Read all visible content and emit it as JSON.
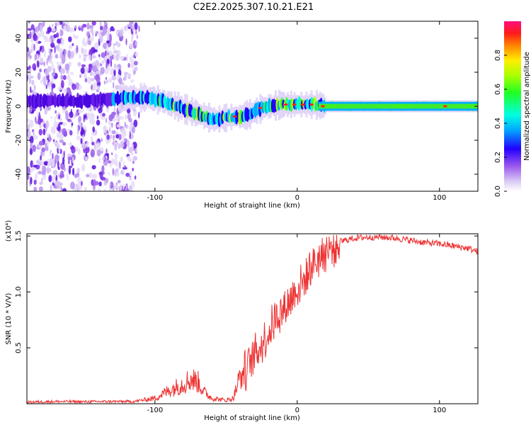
{
  "title": "C2E2.2025.307.10.21.E21",
  "chart_data": [
    {
      "type": "heatmap",
      "name": "spectrogram",
      "xlabel": "Height of straight line (km)",
      "ylabel": "Frequency (Hz)",
      "xlim": [
        -190,
        127
      ],
      "ylim": [
        -50,
        50
      ],
      "xticks": [
        -100,
        0,
        100
      ],
      "yticks": [
        -40,
        -20,
        0,
        20,
        40
      ],
      "xtick_labels": [
        "-100",
        "0",
        "100"
      ],
      "ytick_labels": [
        "-40",
        "-20",
        "0",
        "20",
        "40"
      ],
      "colorbar": {
        "label": "Normalized spectral amplitude",
        "range": [
          0,
          1
        ],
        "ticks": [
          0.0,
          0.2,
          0.4,
          0.6,
          0.8
        ],
        "tick_labels": [
          "0.0",
          "0.2",
          "0.4",
          "0.6",
          "0.8"
        ]
      },
      "ridge": {
        "x": [
          -190,
          -150,
          -120,
          -105,
          -95,
          -85,
          -75,
          -65,
          -58,
          -52,
          -45,
          -40,
          -35,
          -30,
          -25,
          -20,
          -10,
          -5,
          0,
          10,
          20,
          40,
          60,
          80,
          100,
          127
        ],
        "y": [
          3,
          3,
          5,
          5,
          3,
          0,
          -3,
          -6,
          -8,
          -7,
          -6,
          -6,
          -5,
          -3,
          -1,
          0,
          1,
          1,
          1,
          1,
          0,
          0,
          0,
          0,
          0,
          0
        ]
      }
    },
    {
      "type": "line",
      "name": "snr",
      "xlabel": "Height of straight line (km)",
      "ylabel": "SNR (10 * V/V)",
      "y_multiplier": "(x10⁴)",
      "xlim": [
        -190,
        127
      ],
      "ylim": [
        0,
        1.52
      ],
      "xticks": [
        -100,
        0,
        100
      ],
      "yticks": [
        0.5,
        1.0,
        1.5
      ],
      "xtick_labels": [
        "-100",
        "0",
        "100"
      ],
      "ytick_labels": [
        "0.5",
        "1.0",
        "1.5"
      ],
      "color": "#ee3333",
      "series": [
        {
          "name": "SNR",
          "x": [
            -190,
            -170,
            -150,
            -130,
            -115,
            -100,
            -90,
            -80,
            -75,
            -70,
            -65,
            -60,
            -55,
            -50,
            -45,
            -40,
            -35,
            -30,
            -25,
            -20,
            -15,
            -10,
            -5,
            0,
            5,
            10,
            15,
            20,
            30,
            40,
            50,
            60,
            70,
            80,
            90,
            100,
            110,
            120,
            127
          ],
          "y": [
            0.015,
            0.02,
            0.018,
            0.02,
            0.02,
            0.05,
            0.12,
            0.18,
            0.22,
            0.2,
            0.1,
            0.05,
            0.04,
            0.03,
            0.05,
            0.25,
            0.35,
            0.45,
            0.55,
            0.65,
            0.8,
            0.85,
            0.95,
            1.05,
            1.12,
            1.25,
            1.32,
            1.38,
            1.45,
            1.48,
            1.49,
            1.49,
            1.48,
            1.46,
            1.44,
            1.43,
            1.41,
            1.39,
            1.36
          ]
        }
      ]
    }
  ]
}
